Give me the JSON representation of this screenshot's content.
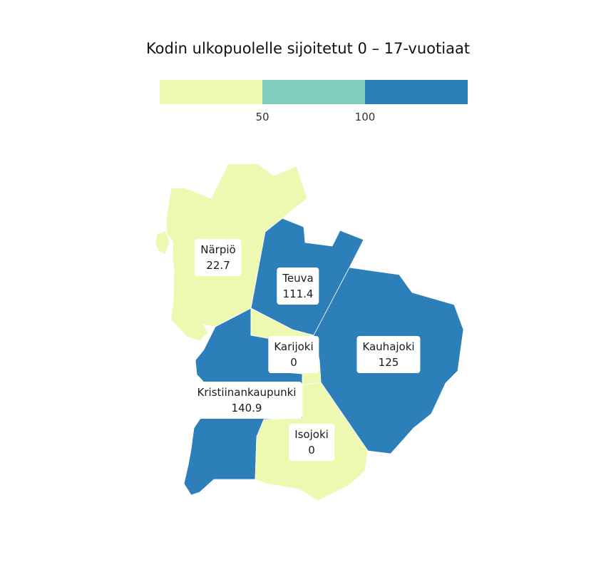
{
  "title": "Kodin ulkopuolelle sijoitetut 0 – 17-vuotiaat",
  "legend": {
    "ticks": [
      "50",
      "100"
    ],
    "breaks": [
      50,
      100
    ],
    "colors": [
      "#edf8b1",
      "#7fcdbb",
      "#2c7fb8"
    ]
  },
  "municipalities": [
    {
      "name": "Närpiö",
      "value": "22.7",
      "color": "#edf8b1"
    },
    {
      "name": "Teuva",
      "value": "111.4",
      "color": "#2c7fb8"
    },
    {
      "name": "Kauhajoki",
      "value": "125",
      "color": "#2c7fb8"
    },
    {
      "name": "Karijoki",
      "value": "0",
      "color": "#edf8b1"
    },
    {
      "name": "Kristiinankaupunki",
      "value": "140.9",
      "color": "#2c7fb8"
    },
    {
      "name": "Isojoki",
      "value": "0",
      "color": "#edf8b1"
    }
  ]
}
